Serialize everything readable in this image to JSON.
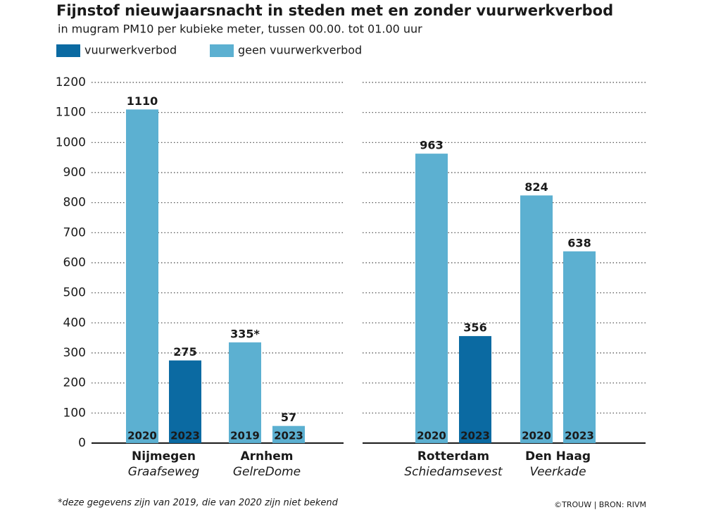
{
  "chart_data": {
    "type": "bar",
    "title": "Fijnstof nieuwjaarsnacht in steden met en zonder vuurwerkverbod",
    "subtitle": "in mugram PM10 per kubieke meter, tussen 00.00. tot 01.00 uur",
    "categories": [
      "2020",
      "2023",
      "2019",
      "2023",
      "2020",
      "2023",
      "2020",
      "2023"
    ],
    "groups": [
      {
        "name": "Nijmegen",
        "location": "Graafseweg"
      },
      {
        "name": "Arnhem",
        "location": "GelreDome"
      },
      {
        "name": "Rotterdam",
        "location": "Schiedamsevest"
      },
      {
        "name": "Den Haag",
        "location": "Veerkade"
      }
    ],
    "series": [
      {
        "name": "vuurwerkverbod",
        "color": "#0b6aa2",
        "values": [
          null,
          275,
          null,
          null,
          null,
          356,
          null,
          null
        ]
      },
      {
        "name": "geen vuurwerkverbod",
        "color": "#5cb0d1",
        "values": [
          1110,
          null,
          335,
          57,
          963,
          null,
          824,
          638
        ],
        "value_labels": [
          "1110",
          null,
          "335*",
          "57",
          "963",
          null,
          "824",
          "638"
        ]
      }
    ],
    "ylim": [
      0,
      1200
    ],
    "yticks": [
      0,
      100,
      200,
      300,
      400,
      500,
      600,
      700,
      800,
      900,
      1000,
      1100,
      1200
    ],
    "grid": true,
    "footnote": "*deze gegevens zijn van 2019, die van 2020 zijn niet bekend",
    "source": "©TROUW | BRON: RIVM"
  }
}
